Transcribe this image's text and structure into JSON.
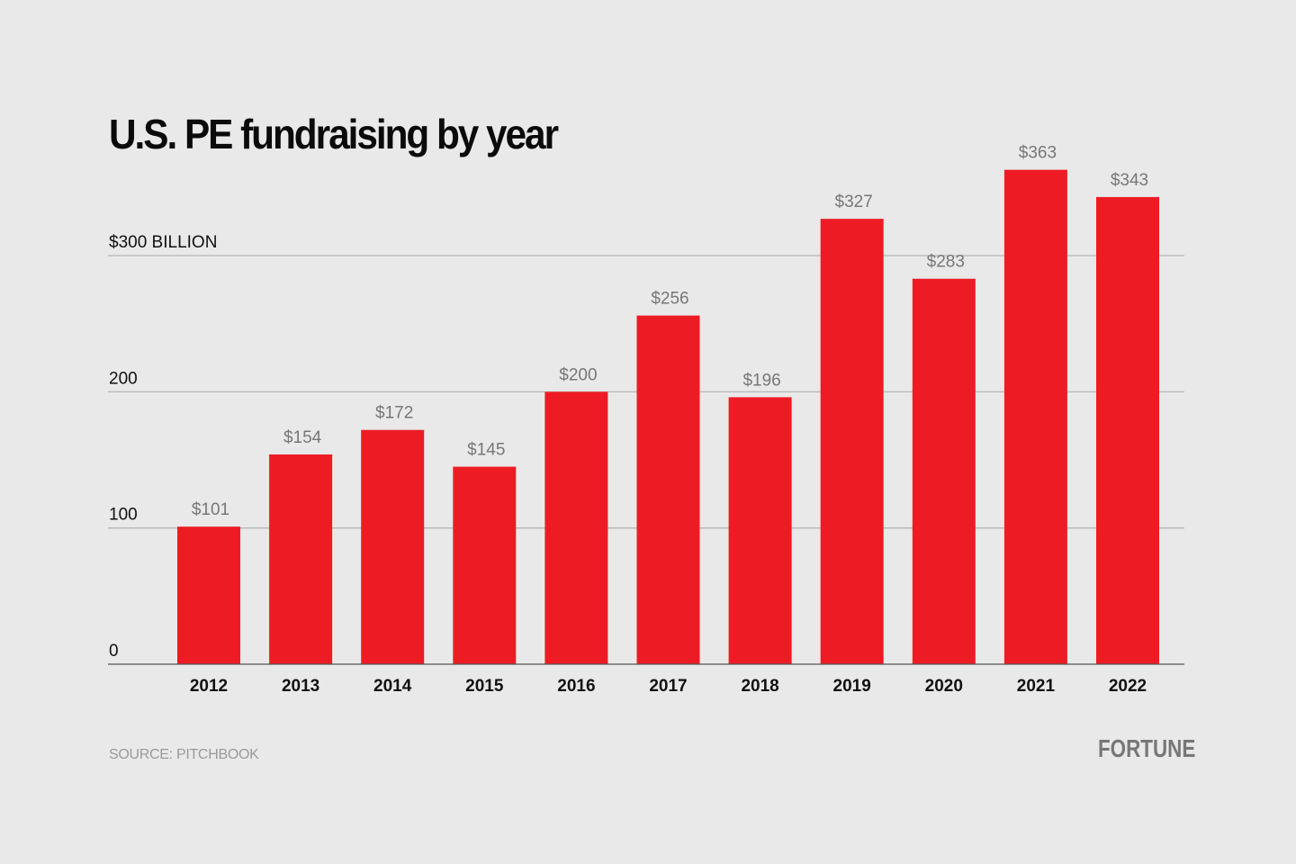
{
  "chart_data": {
    "type": "bar",
    "title": "U.S. PE fundraising by year",
    "categories": [
      "2012",
      "2013",
      "2014",
      "2015",
      "2016",
      "2017",
      "2018",
      "2019",
      "2020",
      "2021",
      "2022"
    ],
    "values": [
      101,
      154,
      172,
      145,
      200,
      256,
      196,
      327,
      283,
      363,
      343
    ],
    "data_labels": [
      "$101",
      "$154",
      "$172",
      "$145",
      "$200",
      "$256",
      "$196",
      "$327",
      "$283",
      "$363",
      "$343"
    ],
    "yticks": [
      0,
      100,
      200,
      300
    ],
    "ytick_labels": [
      "0",
      "100",
      "200",
      "$300 BILLION"
    ],
    "ylim": [
      0,
      363
    ],
    "grid": true,
    "xlabel": "",
    "ylabel": "",
    "bar_color": "#ed1c24"
  },
  "source": "SOURCE: PITCHBOOK",
  "logo": "FORTUNE"
}
